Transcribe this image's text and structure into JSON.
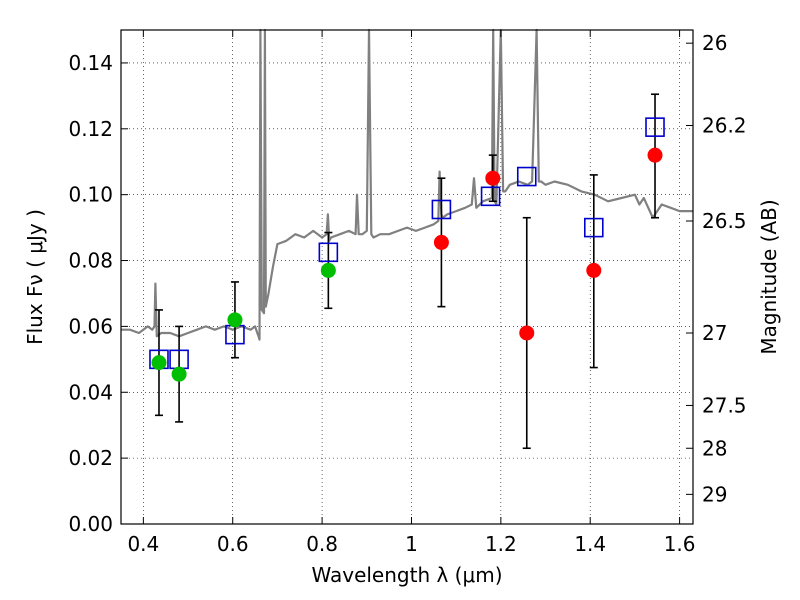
{
  "chart_data": {
    "type": "scatter",
    "title": "",
    "xlabel": "Wavelength  λ (μm)",
    "ylabel": "Flux  Fν  ( μJy )",
    "ylabel_right": "Magnitude (AB)",
    "xlim": [
      0.35,
      1.63
    ],
    "ylim": [
      0.0,
      0.15
    ],
    "grid": true,
    "x_ticks": [
      0.4,
      0.6,
      0.8,
      1.0,
      1.2,
      1.4,
      1.6
    ],
    "x_tick_labels": [
      "0.4",
      "0.6",
      "0.8",
      "1",
      "1.2",
      "1.4",
      "1.6"
    ],
    "y_ticks": [
      0.0,
      0.02,
      0.04,
      0.06,
      0.08,
      0.1,
      0.12,
      0.14
    ],
    "y_tick_labels": [
      "0.00",
      "0.02",
      "0.04",
      "0.06",
      "0.08",
      "0.10",
      "0.12",
      "0.14"
    ],
    "right_ticks": [
      {
        "label": "26",
        "flux": 0.146
      },
      {
        "label": "26.2",
        "flux": 0.121
      },
      {
        "label": "26.5",
        "flux": 0.092
      },
      {
        "label": "27",
        "flux": 0.058
      },
      {
        "label": "27.5",
        "flux": 0.036
      },
      {
        "label": "28",
        "flux": 0.023
      },
      {
        "label": "29",
        "flux": 0.009
      }
    ],
    "series": [
      {
        "name": "observed (green)",
        "color": "#00bf00",
        "points": [
          {
            "x": 0.435,
            "y": 0.049,
            "ylo": 0.033,
            "yhi": 0.065
          },
          {
            "x": 0.48,
            "y": 0.0455,
            "ylo": 0.031,
            "yhi": 0.06
          },
          {
            "x": 0.605,
            "y": 0.062,
            "ylo": 0.0505,
            "yhi": 0.0735
          },
          {
            "x": 0.814,
            "y": 0.077,
            "ylo": 0.0655,
            "yhi": 0.0885
          }
        ]
      },
      {
        "name": "observed (red)",
        "color": "#ff0000",
        "points": [
          {
            "x": 1.067,
            "y": 0.0855,
            "ylo": 0.066,
            "yhi": 0.105
          },
          {
            "x": 1.182,
            "y": 0.105,
            "ylo": 0.098,
            "yhi": 0.112
          },
          {
            "x": 1.258,
            "y": 0.058,
            "ylo": 0.023,
            "yhi": 0.093
          },
          {
            "x": 1.408,
            "y": 0.077,
            "ylo": 0.0475,
            "yhi": 0.106
          },
          {
            "x": 1.545,
            "y": 0.112,
            "ylo": 0.093,
            "yhi": 0.1305
          }
        ]
      },
      {
        "name": "model photometry",
        "color": "#0000cc",
        "points": [
          {
            "x": 0.435,
            "y": 0.05
          },
          {
            "x": 0.48,
            "y": 0.05
          },
          {
            "x": 0.605,
            "y": 0.0575
          },
          {
            "x": 0.814,
            "y": 0.0825
          },
          {
            "x": 1.067,
            "y": 0.0955
          },
          {
            "x": 1.177,
            "y": 0.0995
          },
          {
            "x": 1.258,
            "y": 0.1055
          },
          {
            "x": 1.408,
            "y": 0.09
          },
          {
            "x": 1.545,
            "y": 0.1205
          }
        ]
      },
      {
        "name": "model spectrum",
        "color": "#808080",
        "x": [
          0.35,
          0.37,
          0.39,
          0.41,
          0.42,
          0.425,
          0.427,
          0.43,
          0.44,
          0.46,
          0.48,
          0.5,
          0.52,
          0.54,
          0.56,
          0.58,
          0.6,
          0.62,
          0.64,
          0.65,
          0.655,
          0.658,
          0.66,
          0.662,
          0.665,
          0.67,
          0.672,
          0.674,
          0.68,
          0.69,
          0.7,
          0.72,
          0.74,
          0.76,
          0.78,
          0.8,
          0.81,
          0.813,
          0.816,
          0.82,
          0.84,
          0.86,
          0.875,
          0.878,
          0.882,
          0.89,
          0.9,
          0.905,
          0.91,
          0.915,
          0.93,
          0.95,
          0.97,
          0.99,
          1.01,
          1.03,
          1.05,
          1.06,
          1.063,
          1.067,
          1.07,
          1.08,
          1.1,
          1.12,
          1.135,
          1.14,
          1.145,
          1.16,
          1.18,
          1.183,
          1.186,
          1.19,
          1.2,
          1.205,
          1.21,
          1.22,
          1.24,
          1.26,
          1.27,
          1.28,
          1.285,
          1.29,
          1.3,
          1.32,
          1.35,
          1.38,
          1.41,
          1.44,
          1.47,
          1.5,
          1.51,
          1.52,
          1.54,
          1.56,
          1.58,
          1.6,
          1.63
        ],
        "y": [
          0.059,
          0.059,
          0.058,
          0.06,
          0.059,
          0.06,
          0.073,
          0.057,
          0.058,
          0.058,
          0.057,
          0.058,
          0.059,
          0.06,
          0.059,
          0.06,
          0.059,
          0.06,
          0.059,
          0.06,
          0.058,
          0.057,
          0.056,
          0.15,
          0.065,
          0.064,
          0.15,
          0.066,
          0.07,
          0.078,
          0.085,
          0.086,
          0.088,
          0.087,
          0.089,
          0.087,
          0.088,
          0.094,
          0.086,
          0.087,
          0.088,
          0.089,
          0.088,
          0.1,
          0.088,
          0.088,
          0.089,
          0.15,
          0.088,
          0.087,
          0.088,
          0.088,
          0.089,
          0.09,
          0.089,
          0.09,
          0.091,
          0.092,
          0.107,
          0.094,
          0.093,
          0.094,
          0.095,
          0.096,
          0.097,
          0.105,
          0.096,
          0.098,
          0.099,
          0.15,
          0.098,
          0.097,
          0.15,
          0.101,
          0.101,
          0.103,
          0.104,
          0.103,
          0.104,
          0.15,
          0.104,
          0.104,
          0.103,
          0.104,
          0.103,
          0.101,
          0.1,
          0.098,
          0.099,
          0.1,
          0.097,
          0.099,
          0.093,
          0.097,
          0.096,
          0.095,
          0.095
        ]
      }
    ]
  }
}
